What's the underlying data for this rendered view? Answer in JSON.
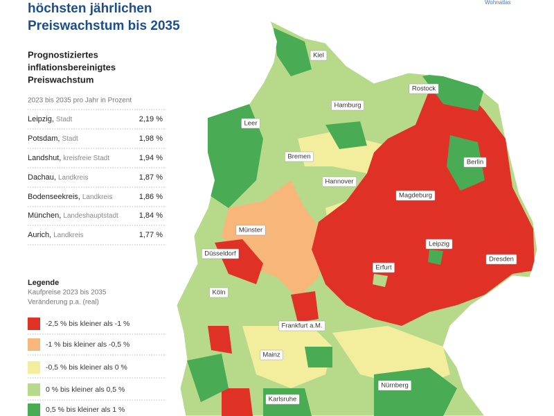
{
  "header": {
    "title_lines": [
      "höchsten jährlichen",
      "Preiswachstum bis 2035"
    ],
    "source": "Wohnatlas"
  },
  "table": {
    "heading_lines": [
      "Prognostiziertes",
      "inflationsbereinigtes",
      "Preiswachstum"
    ],
    "unit": "2023 bis 2035 pro Jahr in Prozent",
    "rows": [
      [
        "Leipzig,",
        "Stadt",
        "2,19 %"
      ],
      [
        "Potsdam,",
        "Stadt",
        "1,98 %"
      ],
      [
        "Landshut,",
        "kreisfreie Stadt",
        "1,94 %"
      ],
      [
        "Dachau,",
        "Landkreis",
        "1,87 %"
      ],
      [
        "Bodenseekreis,",
        "Landkreis",
        "1,86 %"
      ],
      [
        "München,",
        "Landeshauptstadt",
        "1,84 %"
      ],
      [
        "Aurich,",
        "Landkreis",
        "1,77 %"
      ]
    ]
  },
  "legend": {
    "title": "Legende",
    "subtitle_lines": [
      "Kaufpreise 2023 bis 2035",
      "Veränderung p.a. (real)"
    ],
    "items": [
      {
        "label": "-2,5 % bis kleiner als -1 %",
        "color": "#e03127"
      },
      {
        "label": "-1 % bis kleiner als -0,5 %",
        "color": "#f7b77a"
      },
      {
        "label": "-0,5 % bis kleiner als 0 %",
        "color": "#f2ee9e"
      },
      {
        "label": "0 % bis kleiner als 0,5 %",
        "color": "#b7d98a"
      },
      {
        "label": "0,5 % bis kleiner als 1 %",
        "color": "#4aab55"
      }
    ]
  },
  "map": {
    "cities": [
      "Kiel",
      "Rostock",
      "Hamburg",
      "Leer",
      "Bremen",
      "Berlin",
      "Hannover",
      "Magdeburg",
      "Münster",
      "Düsseldorf",
      "Leipzig",
      "Dresden",
      "Erfurt",
      "Köln",
      "Frankfurt a.M.",
      "Mainz",
      "Nürnberg",
      "Karlsruhe"
    ]
  }
}
